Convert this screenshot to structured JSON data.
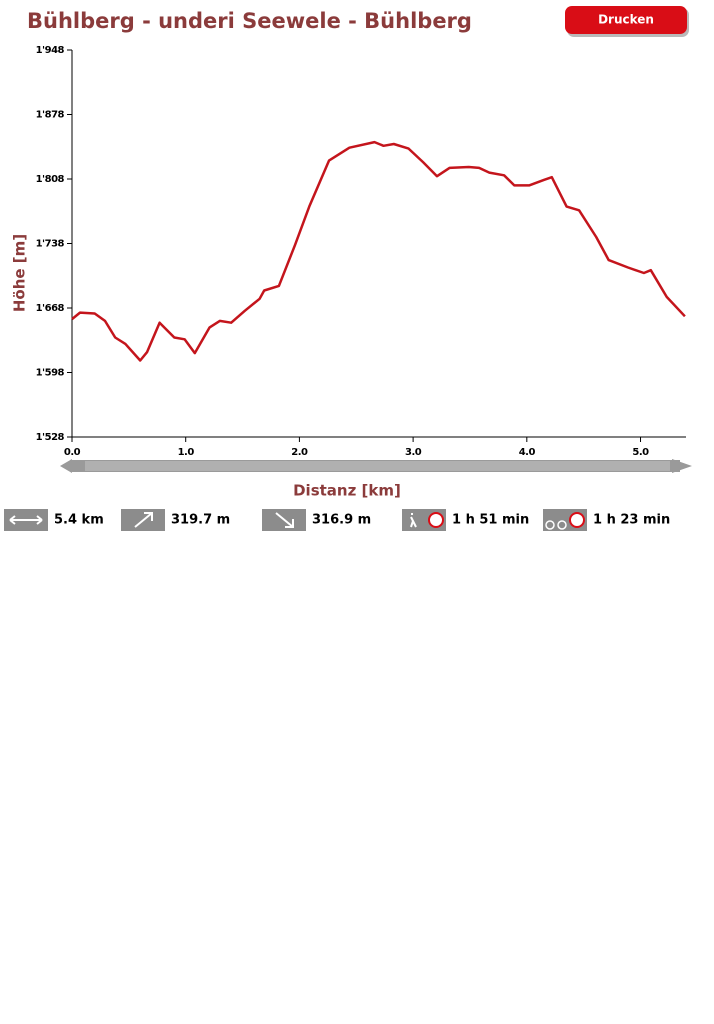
{
  "chart_data": {
    "type": "line",
    "title": "Bühlberg - underi Seewele - Bühlberg",
    "button": "Drucken",
    "xlabel": "Distanz [km]",
    "ylabel": "Höhe [m]",
    "color": "#c4151c",
    "x": [
      0,
      0.07,
      0.2,
      0.29,
      0.38,
      0.47,
      0.6,
      0.66,
      0.77,
      0.9,
      0.99,
      1.08,
      1.21,
      1.3,
      1.4,
      1.52,
      1.65,
      1.69,
      1.82,
      1.96,
      2.09,
      2.26,
      2.44,
      2.66,
      2.74,
      2.83,
      2.96,
      3.09,
      3.21,
      3.32,
      3.49,
      3.58,
      3.67,
      3.8,
      3.89,
      4.02,
      4.15,
      4.22,
      4.35,
      4.46,
      4.61,
      4.72,
      4.89,
      5.03,
      5.09,
      5.23,
      5.39
    ],
    "values": [
      1656,
      1663,
      1662,
      1654,
      1636,
      1629,
      1611,
      1620,
      1652,
      1636,
      1634,
      1619,
      1647,
      1654,
      1652,
      1665,
      1678,
      1687,
      1692,
      1736,
      1779,
      1828,
      1842,
      1848,
      1844,
      1846,
      1841,
      1826,
      1811,
      1820,
      1821,
      1820,
      1815,
      1812,
      1801,
      1801,
      1807,
      1810,
      1778,
      1774,
      1745,
      1720,
      1712,
      1706,
      1709,
      1680,
      1659
    ],
    "xlim": [
      0,
      5.4
    ],
    "ylim": [
      1528,
      1948
    ],
    "xticks": [
      {
        "value": 0,
        "label": "0.0"
      },
      {
        "value": 1,
        "label": "1.0"
      },
      {
        "value": 2,
        "label": "2.0"
      },
      {
        "value": 3,
        "label": "3.0"
      },
      {
        "value": 4,
        "label": "4.0"
      },
      {
        "value": 5,
        "label": "5.0"
      }
    ],
    "yticks": [
      {
        "value": 1528,
        "label": "1'528"
      },
      {
        "value": 1598,
        "label": "1'598"
      },
      {
        "value": 1668,
        "label": "1'668"
      },
      {
        "value": 1738,
        "label": "1'738"
      },
      {
        "value": 1808,
        "label": "1'808"
      },
      {
        "value": 1878,
        "label": "1'878"
      },
      {
        "value": 1948,
        "label": "1'948"
      }
    ],
    "grid": false,
    "stats": [
      "5.4 km",
      "319.7 m",
      "316.9 m",
      "1 h 51 min",
      "1 h 23 min"
    ]
  }
}
